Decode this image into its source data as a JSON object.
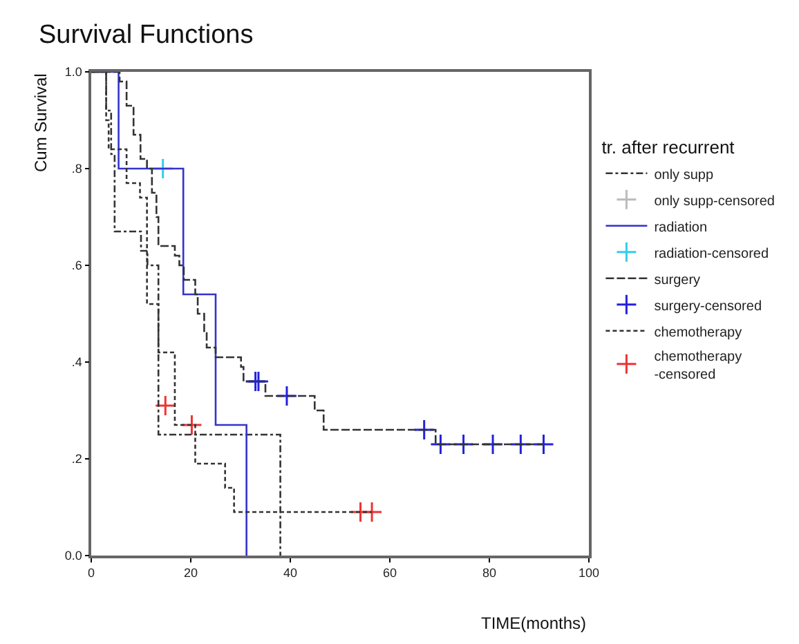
{
  "chart_data": {
    "type": "step",
    "title": "Survival Functions",
    "xlabel": "TIME(months)",
    "ylabel": "Cum Survival",
    "legend_title": "tr. after recurrent",
    "xlim": [
      0,
      100
    ],
    "xticks": [
      0,
      20,
      40,
      60,
      80,
      100
    ],
    "ylim": [
      0,
      1
    ],
    "yticks": [
      {
        "value": 0,
        "label": "0.0"
      },
      {
        "value": 0.2,
        "label": ".2"
      },
      {
        "value": 0.4,
        "label": ".4"
      },
      {
        "value": 0.6,
        "label": ".6"
      },
      {
        "value": 0.8,
        "label": ".8"
      },
      {
        "value": 1,
        "label": "1.0"
      }
    ],
    "legend": "right",
    "series": [
      {
        "name": "only supp",
        "color": "#333333",
        "line_style": "dashdot",
        "x": [
          0,
          3,
          4,
          4.7,
          10,
          11.3,
          13.5,
          38
        ],
        "values": [
          1,
          0.92,
          0.83,
          0.67,
          0.63,
          0.6,
          0.25,
          0
        ]
      },
      {
        "name": "only supp-censored",
        "type": "scatter",
        "marker": "cross",
        "color": "#bbbbbb"
      },
      {
        "name": "radiation",
        "color": "#3333cc",
        "line_style": "solid",
        "x": [
          0,
          5.5,
          18.5,
          25,
          31.2
        ],
        "values": [
          1,
          0.8,
          0.54,
          0.27,
          0
        ]
      },
      {
        "name": "radiation-censored",
        "type": "scatter",
        "marker": "cross",
        "color": "#33ccee",
        "x": [
          14.4
        ],
        "values": [
          0.8
        ]
      },
      {
        "name": "surgery",
        "color": "#333333",
        "line_style": "longdash",
        "x": [
          0,
          5.7,
          7.1,
          8.5,
          9.9,
          11.2,
          12.2,
          13.1,
          13.5,
          16.8,
          17.7,
          18.6,
          20.9,
          21.4,
          22.7,
          23.2,
          25,
          30.1,
          30.6,
          35,
          44.9,
          46.7,
          69.2,
          90.9
        ],
        "values": [
          1,
          0.98,
          0.93,
          0.87,
          0.82,
          0.8,
          0.75,
          0.7,
          0.64,
          0.62,
          0.6,
          0.57,
          0.54,
          0.5,
          0.46,
          0.43,
          0.41,
          0.39,
          0.36,
          0.33,
          0.3,
          0.26,
          0.23,
          0.23
        ]
      },
      {
        "name": "surgery-censored",
        "type": "scatter",
        "marker": "cross",
        "color": "#2222dd",
        "x": [
          33,
          33.6,
          39.3,
          66.9,
          70.2,
          74.8,
          80.7,
          86.3,
          90.9
        ],
        "values": [
          0.36,
          0.36,
          0.33,
          0.26,
          0.23,
          0.23,
          0.23,
          0.23,
          0.23
        ]
      },
      {
        "name": "chemotherapy",
        "color": "#333333",
        "line_style": "dashed",
        "x": [
          0,
          3,
          3.5,
          7.1,
          9.8,
          11.2,
          13.5,
          16.8,
          20.9,
          26.9,
          28.7,
          56.4
        ],
        "values": [
          1,
          0.9,
          0.84,
          0.77,
          0.74,
          0.52,
          0.42,
          0.27,
          0.19,
          0.14,
          0.09,
          0.09
        ]
      },
      {
        "name": "chemotherapy\n-censored",
        "type": "scatter",
        "marker": "cross",
        "color": "#ee3333",
        "x": [
          14.9,
          20.2,
          54.1,
          56.4
        ],
        "values": [
          0.31,
          0.27,
          0.09,
          0.09
        ]
      }
    ]
  }
}
